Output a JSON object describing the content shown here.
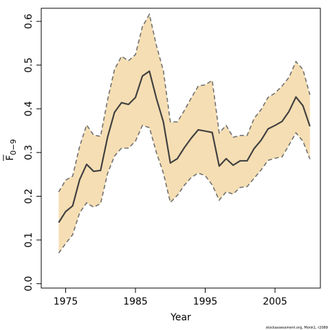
{
  "chart_data": {
    "type": "area",
    "xlabel": "Year",
    "ylabel_main": "F",
    "ylabel_sub": "0−9",
    "xlim": [
      1971.5,
      2011.5
    ],
    "ylim": [
      -0.01,
      0.63
    ],
    "x_ticks": [
      1975,
      1985,
      1995,
      2005
    ],
    "y_ticks": [
      0.0,
      0.1,
      0.2,
      0.3,
      0.4,
      0.5,
      0.6
    ],
    "y_tick_labels": [
      "0.0",
      "0.1",
      "0.2",
      "0.3",
      "0.4",
      "0.5",
      "0.6"
    ],
    "x_tick_labels": [
      "1975",
      "1985",
      "1995",
      "2005"
    ],
    "credit": "stockassessment.org, Monk1, r2089",
    "fill_color": "#f5deb3",
    "line_color": "#404040",
    "bound_color": "#707070",
    "x": [
      1974,
      1975,
      1976,
      1977,
      1978,
      1979,
      1980,
      1981,
      1982,
      1983,
      1984,
      1985,
      1986,
      1987,
      1988,
      1989,
      1990,
      1991,
      1992,
      1993,
      1994,
      1995,
      1996,
      1997,
      1998,
      1999,
      2000,
      2001,
      2002,
      2003,
      2004,
      2005,
      2006,
      2007,
      2008,
      2009,
      2010
    ],
    "series": [
      {
        "values": [
          0.14,
          0.165,
          0.178,
          0.238,
          0.273,
          0.257,
          0.259,
          0.335,
          0.392,
          0.414,
          0.41,
          0.426,
          0.475,
          0.486,
          0.424,
          0.37,
          0.276,
          0.286,
          0.311,
          0.333,
          0.352,
          0.349,
          0.346,
          0.269,
          0.286,
          0.271,
          0.281,
          0.281,
          0.309,
          0.328,
          0.354,
          0.362,
          0.371,
          0.394,
          0.427,
          0.407,
          0.36
        ]
      }
    ],
    "lower": [
      0.07,
      0.092,
      0.112,
      0.162,
      0.185,
      0.175,
      0.183,
      0.252,
      0.292,
      0.31,
      0.31,
      0.326,
      0.362,
      0.357,
      0.3,
      0.253,
      0.186,
      0.202,
      0.225,
      0.243,
      0.253,
      0.247,
      0.226,
      0.191,
      0.21,
      0.205,
      0.22,
      0.222,
      0.241,
      0.26,
      0.282,
      0.287,
      0.29,
      0.317,
      0.345,
      0.326,
      0.285
    ],
    "upper": [
      0.21,
      0.237,
      0.246,
      0.314,
      0.363,
      0.34,
      0.337,
      0.42,
      0.49,
      0.52,
      0.51,
      0.524,
      0.588,
      0.616,
      0.545,
      0.487,
      0.37,
      0.37,
      0.396,
      0.425,
      0.452,
      0.455,
      0.465,
      0.345,
      0.362,
      0.335,
      0.339,
      0.339,
      0.378,
      0.398,
      0.426,
      0.436,
      0.452,
      0.472,
      0.508,
      0.49,
      0.432
    ]
  }
}
